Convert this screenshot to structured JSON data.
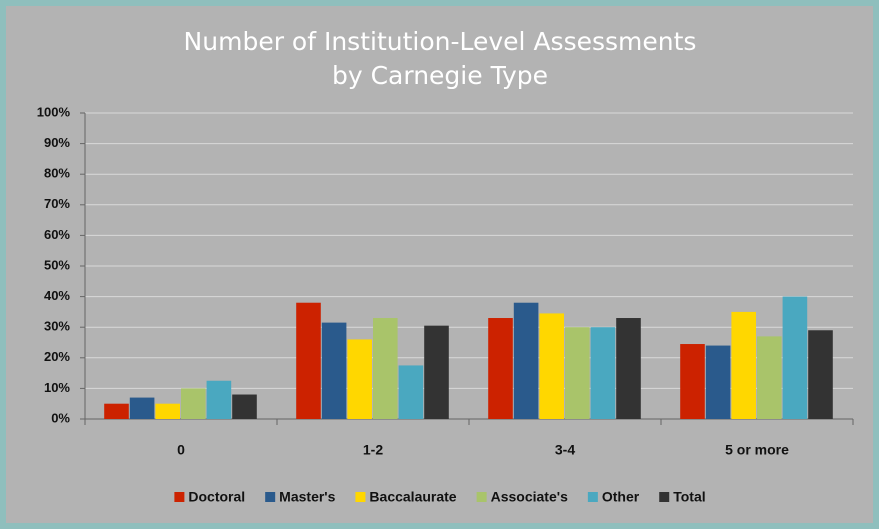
{
  "chart_data": {
    "type": "bar",
    "title": [
      "Number of Institution-Level Assessments",
      "by Carnegie Type"
    ],
    "categories": [
      "0",
      "1-2",
      "3-4",
      "5 or more"
    ],
    "series": [
      {
        "name": "Doctoral",
        "color": "#cc2200",
        "values": [
          5,
          38,
          33,
          24.5
        ]
      },
      {
        "name": "Master's",
        "color": "#2a5a8c",
        "values": [
          7,
          31.5,
          38,
          24
        ]
      },
      {
        "name": "Baccalaurate",
        "color": "#ffd700",
        "values": [
          5,
          26,
          34.5,
          35
        ]
      },
      {
        "name": "Associate's",
        "color": "#a9c46a",
        "values": [
          10,
          33,
          30,
          27
        ]
      },
      {
        "name": "Other",
        "color": "#4aa8c0",
        "values": [
          12.5,
          17.5,
          30,
          40
        ]
      },
      {
        "name": "Total",
        "color": "#333333",
        "values": [
          8,
          30.5,
          33,
          29
        ]
      }
    ],
    "ylim": [
      0,
      100
    ],
    "yticks": [
      {
        "value": 0,
        "label": "0%"
      },
      {
        "value": 10,
        "label": "10%"
      },
      {
        "value": 20,
        "label": "20%"
      },
      {
        "value": 30,
        "label": "30%"
      },
      {
        "value": 40,
        "label": "40%"
      },
      {
        "value": 50,
        "label": "50%"
      },
      {
        "value": 60,
        "label": "60%"
      },
      {
        "value": 70,
        "label": "70%"
      },
      {
        "value": 80,
        "label": "80%"
      },
      {
        "value": 90,
        "label": "90%"
      },
      {
        "value": 100,
        "label": "100%"
      }
    ],
    "grid": true,
    "legend": "bottom"
  }
}
